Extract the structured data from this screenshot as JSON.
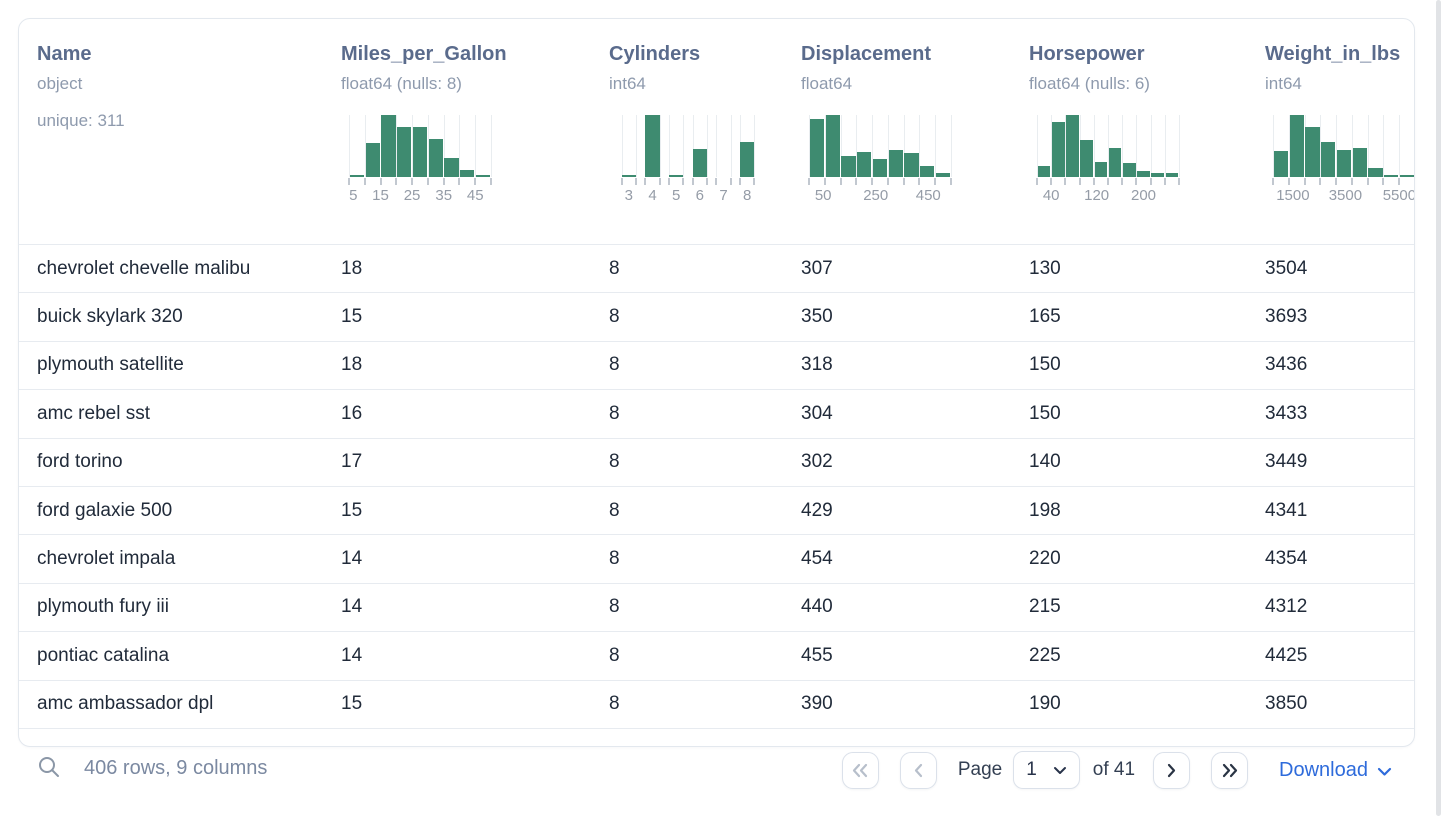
{
  "colors": {
    "hist_bar": "#3e8b70",
    "accent_blue": "#2e6bdb",
    "header_text": "#5a6b8c",
    "muted_text": "#8e9aad",
    "row_text": "#212b3a"
  },
  "table": {
    "columns": [
      {
        "name": "Name",
        "dtype": "object",
        "extra": "unique: 311",
        "hist": null
      },
      {
        "name": "Miles_per_Gallon",
        "dtype": "float64 (nulls: 8)",
        "extra": null,
        "hist": {
          "type": "histogram",
          "bars": [
            3,
            55,
            100,
            81,
            81,
            61,
            31,
            11,
            3
          ],
          "barw": 0.9,
          "ticks": [
            0,
            0.111,
            0.222,
            0.333,
            0.444,
            0.556,
            0.667,
            0.778,
            0.889,
            1
          ],
          "labels": [
            {
              "text": "5",
              "f": 0.03
            },
            {
              "text": "15",
              "f": 0.222
            },
            {
              "text": "25",
              "f": 0.444
            },
            {
              "text": "35",
              "f": 0.667
            },
            {
              "text": "45",
              "f": 0.889
            }
          ]
        }
      },
      {
        "name": "Cylinders",
        "dtype": "int64",
        "extra": null,
        "hist": {
          "type": "histogram",
          "bars": [
            4,
            100,
            2,
            45,
            0,
            57
          ],
          "barw": 0.6,
          "ticks": [
            0.033,
            0.133,
            0.2,
            0.3,
            0.367,
            0.467,
            0.533,
            0.633,
            0.7,
            0.8,
            0.867,
            0.967
          ],
          "labels": [
            {
              "text": "3",
              "f": 0.083
            },
            {
              "text": "4",
              "f": 0.25
            },
            {
              "text": "5",
              "f": 0.417
            },
            {
              "text": "6",
              "f": 0.583
            },
            {
              "text": "7",
              "f": 0.75
            },
            {
              "text": "8",
              "f": 0.917
            }
          ]
        }
      },
      {
        "name": "Displacement",
        "dtype": "float64",
        "extra": null,
        "hist": {
          "type": "histogram",
          "bars": [
            93,
            100,
            34,
            41,
            29,
            44,
            39,
            18,
            6
          ],
          "barw": 0.9,
          "ticks": [
            0,
            0.111,
            0.222,
            0.333,
            0.444,
            0.556,
            0.667,
            0.778,
            0.889,
            1
          ],
          "labels": [
            {
              "text": "50",
              "f": 0.1
            },
            {
              "text": "250",
              "f": 0.47
            },
            {
              "text": "450",
              "f": 0.84
            }
          ]
        }
      },
      {
        "name": "Horsepower",
        "dtype": "float64 (nulls: 6)",
        "extra": null,
        "hist": {
          "type": "histogram",
          "bars": [
            17,
            88,
            100,
            60,
            24,
            46,
            22,
            10,
            7,
            6
          ],
          "barw": 0.9,
          "ticks": [
            0,
            0.1,
            0.2,
            0.3,
            0.4,
            0.5,
            0.6,
            0.7,
            0.8,
            0.9,
            1
          ],
          "labels": [
            {
              "text": "40",
              "f": 0.1
            },
            {
              "text": "120",
              "f": 0.42
            },
            {
              "text": "200",
              "f": 0.75
            }
          ]
        }
      },
      {
        "name": "Weight_in_lbs",
        "dtype": "int64",
        "extra": null,
        "hist": {
          "type": "histogram",
          "bars": [
            42,
            100,
            80,
            57,
            44,
            47,
            15,
            3,
            1
          ],
          "barw": 0.9,
          "ticks": [
            0,
            0.111,
            0.222,
            0.333,
            0.444,
            0.556,
            0.667,
            0.778,
            0.889,
            1
          ],
          "labels": [
            {
              "text": "1500",
              "f": 0.14
            },
            {
              "text": "3500",
              "f": 0.51
            },
            {
              "text": "5500",
              "f": 0.89
            }
          ]
        }
      }
    ],
    "rows": [
      [
        "chevrolet chevelle malibu",
        "18",
        "8",
        "307",
        "130",
        "3504"
      ],
      [
        "buick skylark 320",
        "15",
        "8",
        "350",
        "165",
        "3693"
      ],
      [
        "plymouth satellite",
        "18",
        "8",
        "318",
        "150",
        "3436"
      ],
      [
        "amc rebel sst",
        "16",
        "8",
        "304",
        "150",
        "3433"
      ],
      [
        "ford torino",
        "17",
        "8",
        "302",
        "140",
        "3449"
      ],
      [
        "ford galaxie 500",
        "15",
        "8",
        "429",
        "198",
        "4341"
      ],
      [
        "chevrolet impala",
        "14",
        "8",
        "454",
        "220",
        "4354"
      ],
      [
        "plymouth fury iii",
        "14",
        "8",
        "440",
        "215",
        "4312"
      ],
      [
        "pontiac catalina",
        "14",
        "8",
        "455",
        "225",
        "4425"
      ],
      [
        "amc ambassador dpl",
        "15",
        "8",
        "390",
        "190",
        "3850"
      ]
    ]
  },
  "footer": {
    "status": "406 rows, 9 columns",
    "page_label": "Page",
    "page_value": "1",
    "of_label": "of 41",
    "download_label": "Download"
  }
}
